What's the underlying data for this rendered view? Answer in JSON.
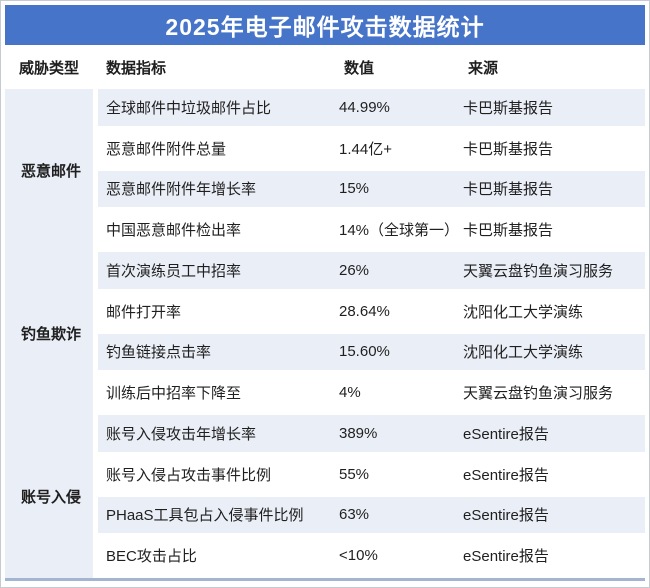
{
  "title": "2025年电子邮件攻击数据统计",
  "columns": {
    "threat_type": "威胁类型",
    "indicator": "数据指标",
    "value": "数值",
    "source": "来源"
  },
  "groups": [
    {
      "label": "恶意邮件",
      "rows": [
        {
          "indicator": "全球邮件中垃圾邮件占比",
          "value": "44.99%",
          "source": "卡巴斯基报告"
        },
        {
          "indicator": "恶意邮件附件总量",
          "value": "1.44亿+",
          "source": "卡巴斯基报告"
        },
        {
          "indicator": "恶意邮件附件年增长率",
          "value": "15%",
          "source": "卡巴斯基报告"
        },
        {
          "indicator": "中国恶意邮件检出率",
          "value": "14%（全球第一）",
          "source": "卡巴斯基报告"
        }
      ]
    },
    {
      "label": "钓鱼欺诈",
      "rows": [
        {
          "indicator": "首次演练员工中招率",
          "value": "26%",
          "source": "天翼云盘钓鱼演习服务"
        },
        {
          "indicator": "邮件打开率",
          "value": "28.64%",
          "source": "沈阳化工大学演练"
        },
        {
          "indicator": "钓鱼链接点击率",
          "value": "15.60%",
          "source": "沈阳化工大学演练"
        },
        {
          "indicator": "训练后中招率下降至",
          "value": "4%",
          "source": "天翼云盘钓鱼演习服务"
        }
      ]
    },
    {
      "label": "账号入侵",
      "rows": [
        {
          "indicator": "账号入侵攻击年增长率",
          "value": "389%",
          "source": "eSentire报告"
        },
        {
          "indicator": "账号入侵占攻击事件比例",
          "value": "55%",
          "source": "eSentire报告"
        },
        {
          "indicator": "PHaaS工具包占入侵事件比例",
          "value": "63%",
          "source": "eSentire报告"
        },
        {
          "indicator": "BEC攻击占比",
          "value": "<10%",
          "source": "eSentire报告"
        }
      ]
    }
  ],
  "colors": {
    "accent": "#4674c8",
    "stripe": "#eaeef7",
    "rule": "#a3b5d1",
    "text": "#1f1f1f",
    "frame_border": "#c6cad2"
  }
}
